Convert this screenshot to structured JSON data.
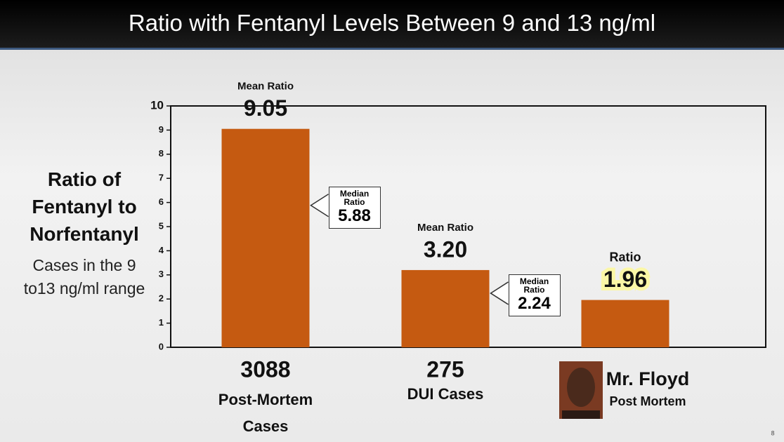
{
  "chart_data": {
    "type": "bar",
    "title": "Ratio with Fentanyl Levels Between 9 and 13 ng/ml",
    "y_label": "Ratio of Fentanyl to Norfentanyl",
    "y_sublabel": "Cases in the 9 to13 ng/ml range",
    "categories": [
      "3088",
      "275",
      "Mr. Floyd"
    ],
    "category_subtitles": [
      "Post-Mortem Cases",
      "DUI Cases",
      "Post Mortem"
    ],
    "values": [
      9.05,
      3.2,
      1.96
    ],
    "value_labels": [
      "9.05",
      "3.20",
      "1.96"
    ],
    "value_headers": [
      "Mean Ratio",
      "Mean Ratio",
      "Ratio"
    ],
    "median_label": "Median Ratio",
    "medians": [
      5.88,
      2.24,
      null
    ],
    "color": "#c55a11",
    "ylim": [
      0,
      10
    ],
    "yticks": [
      0,
      1,
      2,
      3,
      4,
      5,
      6,
      7,
      8,
      9,
      10
    ],
    "page_number": "8"
  }
}
